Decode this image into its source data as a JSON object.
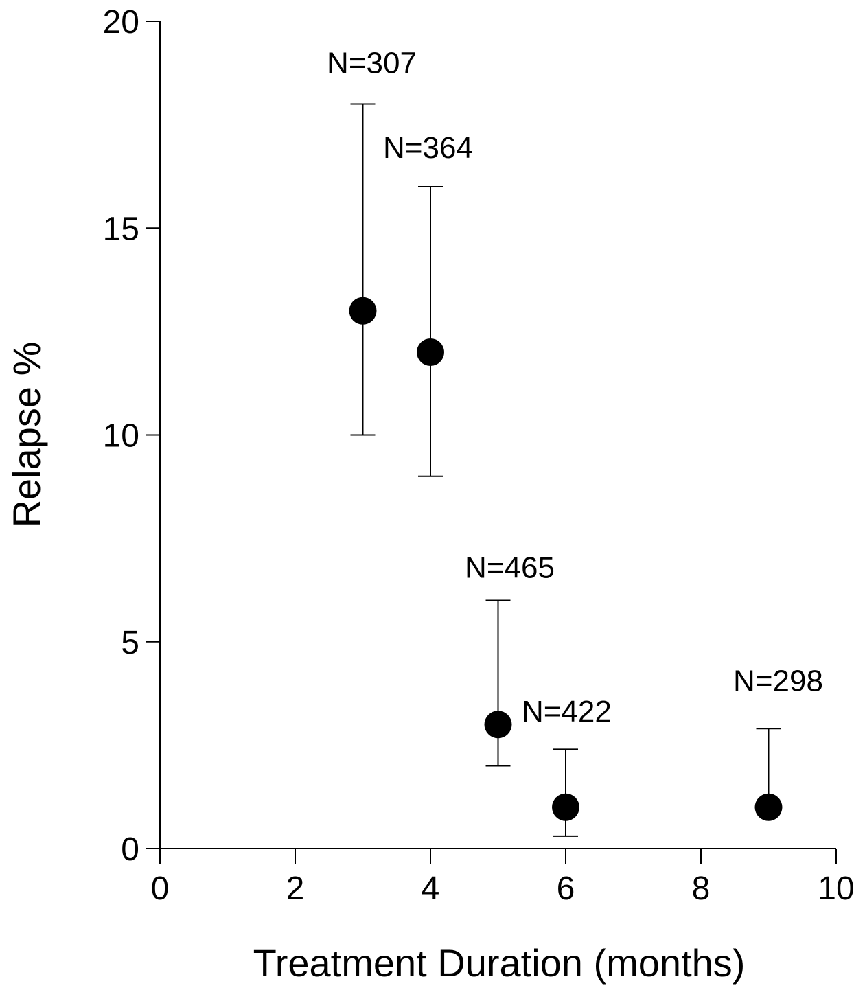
{
  "chart_data": {
    "type": "scatter",
    "xlabel": "Treatment Duration (months)",
    "ylabel": "Relapse %",
    "xlim": [
      0,
      10
    ],
    "ylim": [
      0,
      20
    ],
    "xticks": [
      0,
      2,
      4,
      6,
      8,
      10
    ],
    "yticks": [
      0,
      5,
      10,
      15,
      20
    ],
    "grid": false,
    "points": [
      {
        "x": 3,
        "y": 13,
        "err_low": 10,
        "err_high": 18,
        "label": "N=307"
      },
      {
        "x": 4,
        "y": 12,
        "err_low": 9,
        "err_high": 16,
        "label": "N=364"
      },
      {
        "x": 5,
        "y": 3,
        "err_low": 2,
        "err_high": 6,
        "label": "N=465"
      },
      {
        "x": 6,
        "y": 1,
        "err_low": 0.3,
        "err_high": 2.4,
        "label": "N=422"
      },
      {
        "x": 9,
        "y": 1,
        "err_low": 1,
        "err_high": 2.9,
        "label": "N=298"
      }
    ]
  }
}
